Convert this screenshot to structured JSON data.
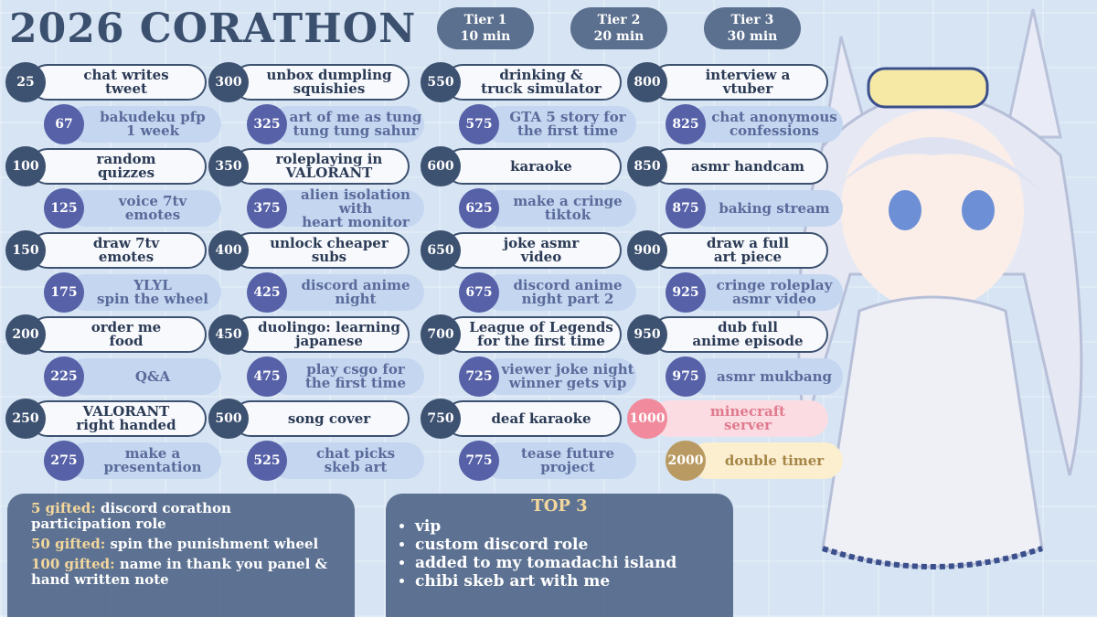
{
  "header": {
    "title": "2026 CORATHON"
  },
  "tiers": [
    {
      "name": "Tier 1",
      "time": "10 min"
    },
    {
      "name": "Tier 2",
      "time": "20 min"
    },
    {
      "name": "Tier 3",
      "time": "30 min"
    }
  ],
  "goals": [
    {
      "amount": 25,
      "label": "chat writes\ntweet"
    },
    {
      "amount": 67,
      "label": "bakudeku pfp\n1 week"
    },
    {
      "amount": 100,
      "label": "random\nquizzes"
    },
    {
      "amount": 125,
      "label": "voice 7tv\nemotes"
    },
    {
      "amount": 150,
      "label": "draw 7tv\nemotes"
    },
    {
      "amount": 175,
      "label": "YLYL\nspin the wheel"
    },
    {
      "amount": 200,
      "label": "order me\nfood"
    },
    {
      "amount": 225,
      "label": "Q&A"
    },
    {
      "amount": 250,
      "label": "VALORANT\nright handed"
    },
    {
      "amount": 275,
      "label": "make a\npresentation"
    },
    {
      "amount": 300,
      "label": "unbox dumpling\nsquishies"
    },
    {
      "amount": 325,
      "label": "art of me as tung\ntung tung sahur"
    },
    {
      "amount": 350,
      "label": "roleplaying in\nVALORANT"
    },
    {
      "amount": 375,
      "label": "alien isolation with\nheart monitor"
    },
    {
      "amount": 400,
      "label": "unlock cheaper\nsubs"
    },
    {
      "amount": 425,
      "label": "discord anime\nnight"
    },
    {
      "amount": 450,
      "label": "duolingo: learning\njapanese"
    },
    {
      "amount": 475,
      "label": "play csgo for\nthe first time"
    },
    {
      "amount": 500,
      "label": "song cover"
    },
    {
      "amount": 525,
      "label": "chat picks\nskeb art"
    },
    {
      "amount": 550,
      "label": "drinking &\ntruck simulator"
    },
    {
      "amount": 575,
      "label": "GTA 5 story for\nthe first time"
    },
    {
      "amount": 600,
      "label": "karaoke"
    },
    {
      "amount": 625,
      "label": "make a cringe\ntiktok"
    },
    {
      "amount": 650,
      "label": "joke asmr\nvideo"
    },
    {
      "amount": 675,
      "label": "discord anime\nnight part 2"
    },
    {
      "amount": 700,
      "label": "League of Legends\nfor the first time"
    },
    {
      "amount": 725,
      "label": "viewer joke night\nwinner gets vip"
    },
    {
      "amount": 750,
      "label": "deaf karaoke"
    },
    {
      "amount": 775,
      "label": "tease future\nproject"
    },
    {
      "amount": 800,
      "label": "interview a\nvtuber"
    },
    {
      "amount": 825,
      "label": "chat anonymous\nconfessions"
    },
    {
      "amount": 850,
      "label": "asmr handcam"
    },
    {
      "amount": 875,
      "label": "baking stream"
    },
    {
      "amount": 900,
      "label": "draw a full\nart piece"
    },
    {
      "amount": 925,
      "label": "cringe roleplay\nasmr video"
    },
    {
      "amount": 950,
      "label": "dub full\nanime episode"
    },
    {
      "amount": 975,
      "label": "asmr mukbang"
    },
    {
      "amount": 1000,
      "label": "minecraft\nserver",
      "variant": "pink"
    },
    {
      "amount": 2000,
      "label": "double timer",
      "variant": "gold"
    }
  ],
  "gifted": [
    {
      "count": "5 gifted:",
      "reward": "discord corathon participation role"
    },
    {
      "count": "50 gifted:",
      "reward": "spin the punishment wheel"
    },
    {
      "count": "100 gifted:",
      "reward": "name in thank you panel & hand written note"
    }
  ],
  "top3": {
    "title": "TOP 3",
    "items": [
      "vip",
      "custom discord role",
      "added to my tomadachi island",
      "chibi skeb art with me"
    ]
  }
}
